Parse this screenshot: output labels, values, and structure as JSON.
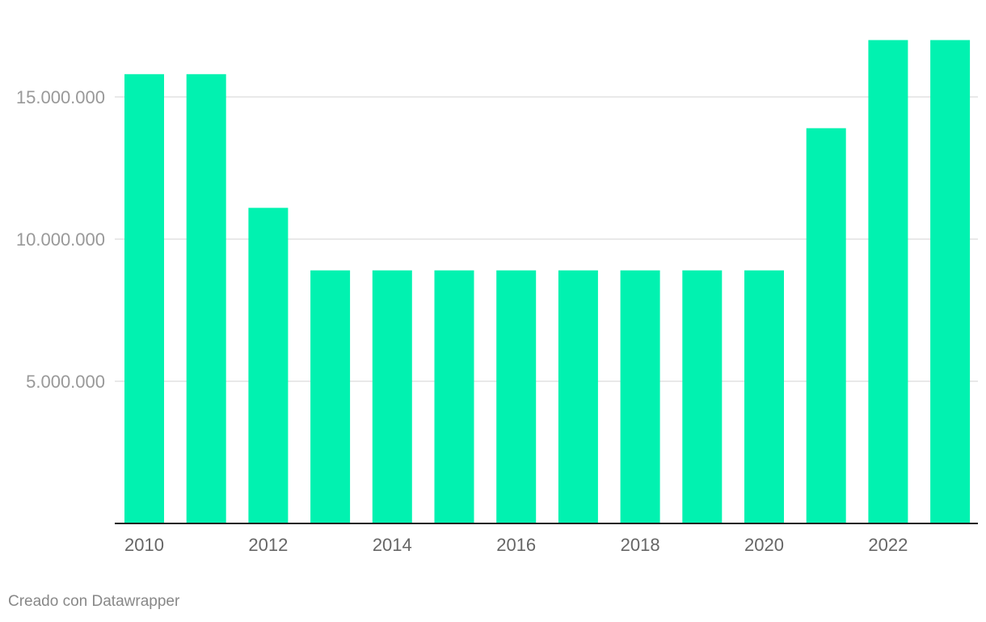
{
  "chart_data": {
    "type": "bar",
    "categories": [
      "2010",
      "2011",
      "2012",
      "2013",
      "2014",
      "2015",
      "2016",
      "2017",
      "2018",
      "2019",
      "2020",
      "2021",
      "2022",
      "2023"
    ],
    "values": [
      15800000,
      15800000,
      11100000,
      8900000,
      8900000,
      8900000,
      8900000,
      8900000,
      8900000,
      8900000,
      8900000,
      13900000,
      17000000,
      17000000
    ],
    "x_tick_labels": [
      "2010",
      "2012",
      "2014",
      "2016",
      "2018",
      "2020",
      "2022"
    ],
    "y_ticks": [
      5000000,
      10000000,
      15000000
    ],
    "y_tick_labels": [
      "5.000.000",
      "10.000.000",
      "15.000.000"
    ],
    "ylim": [
      0,
      17000000
    ],
    "title": "",
    "xlabel": "",
    "ylabel": "",
    "grid": true,
    "legend": "none",
    "bar_color": "#01f2b0"
  },
  "footer": {
    "credit": "Creado con Datawrapper"
  }
}
